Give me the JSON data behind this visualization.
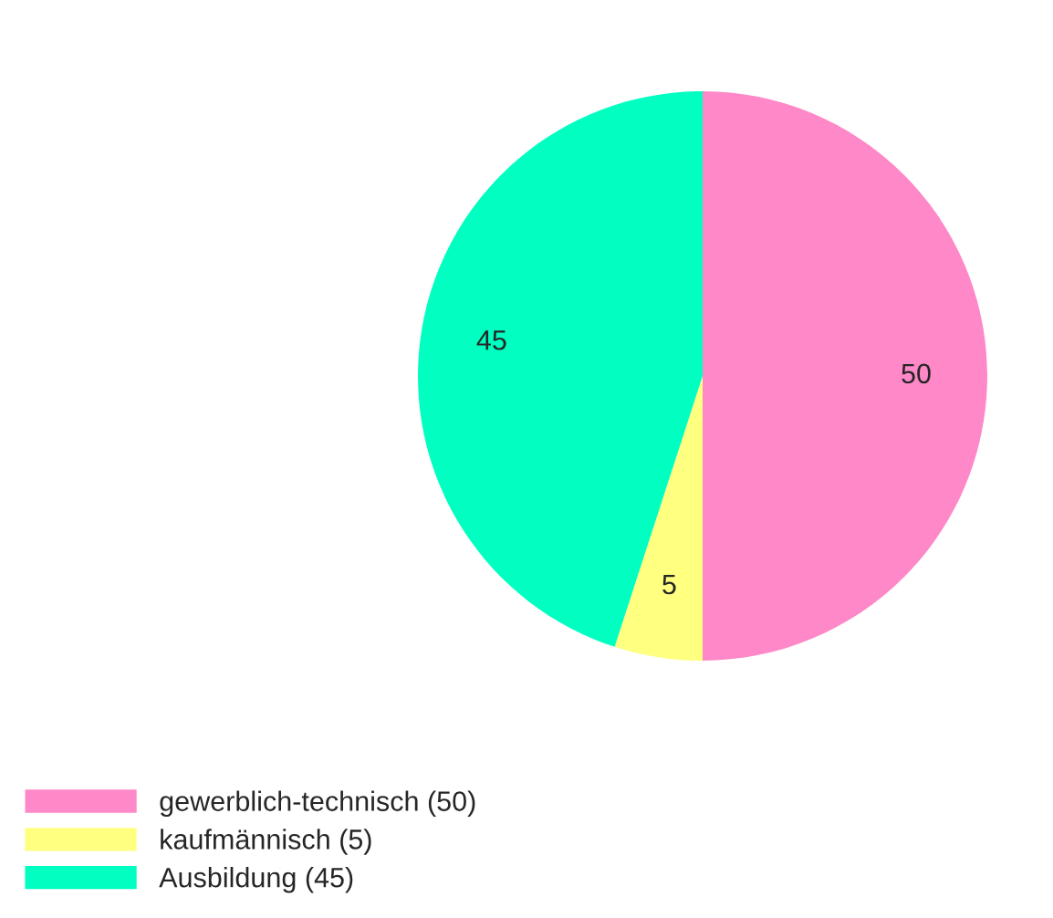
{
  "chart_data": {
    "type": "pie",
    "categories": [
      "gewerblich-technisch (50)",
      "kaufmännisch (5)",
      "Ausbildung (45)"
    ],
    "values": [
      50,
      5,
      45
    ],
    "colors": [
      "#ff88c8",
      "#ffff80",
      "#00ffc0"
    ],
    "data_labels": true,
    "legend": "bottom left"
  }
}
